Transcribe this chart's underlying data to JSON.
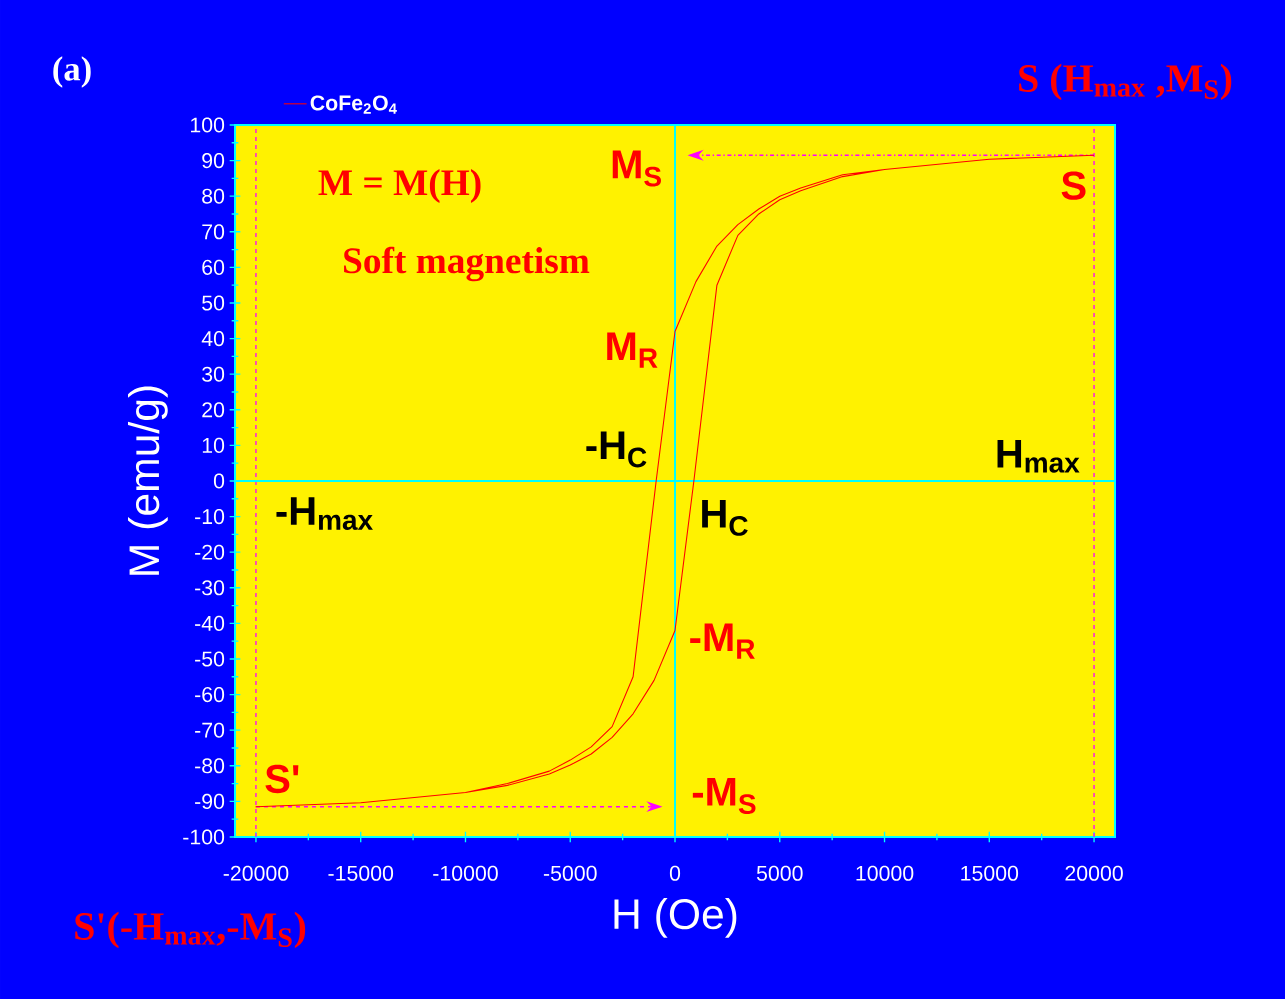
{
  "chart_data": {
    "type": "line",
    "xlabel": "H (Oe)",
    "ylabel": "M (emu/g)",
    "series": [
      {
        "name": "CoFe$_{2}$O$_{4}$",
        "color": "#ff0000",
        "x": [
          20000,
          15000,
          10000,
          8000,
          6000,
          5000,
          4000,
          3000,
          2000,
          1000,
          0,
          -900,
          -2000,
          -3000,
          -4000,
          -5000,
          -6000,
          -8000,
          -10000,
          -15000,
          -20000,
          -15000,
          -10000,
          -8000,
          -6000,
          -5000,
          -4000,
          -3000,
          -2000,
          -1000,
          0,
          900,
          2000,
          3000,
          4000,
          5000,
          6000,
          8000,
          10000,
          15000
        ],
        "values": [
          91.5,
          90.4,
          87.5,
          86,
          82.3,
          80,
          76.4,
          72,
          66,
          56,
          42,
          0,
          -55,
          -69,
          -74.7,
          -78.4,
          -81.5,
          -85,
          -87.5,
          -90.4,
          -91.5,
          -90.4,
          -87.5,
          -85.5,
          -82.3,
          -79.8,
          -76.7,
          -72,
          -65.4,
          -56,
          -42,
          0,
          55,
          69,
          75,
          79,
          81.5,
          85.5,
          87.5,
          90.4
        ]
      }
    ],
    "xlim": [
      -21000,
      21000
    ],
    "ylim": [
      -100,
      100
    ],
    "xticks": [
      -20000,
      -15000,
      -10000,
      -5000,
      0,
      5000,
      10000,
      15000,
      20000
    ],
    "yticks": [
      -100,
      -90,
      -80,
      -70,
      -60,
      -50,
      -40,
      -30,
      -20,
      -10,
      0,
      10,
      20,
      30,
      40,
      50,
      60,
      70,
      80,
      90,
      100
    ],
    "ref_lines": [
      {
        "axis": "x",
        "value": -20000,
        "color": "#ff00ff",
        "line_style": "dashed"
      },
      {
        "axis": "x",
        "value": 20000,
        "color": "#ff00ff",
        "line_style": "dashed"
      },
      {
        "axis": "x",
        "value": 0,
        "color": "#00ffff",
        "line_style": "solid"
      },
      {
        "axis": "y",
        "value": 0,
        "color": "#00ffff",
        "line_style": "solid"
      }
    ],
    "annotations": [
      {
        "text": "M$_{S}$",
        "x": 0,
        "y": 91.5
      },
      {
        "text": "M$_{R}$",
        "x": 0,
        "y": 42
      },
      {
        "text": "-H$_{C}$",
        "x": -900,
        "y": 0
      },
      {
        "text": "H$_{C}$",
        "x": 900,
        "y": 0
      },
      {
        "text": "-M$_{R}$",
        "x": 0,
        "y": -42
      },
      {
        "text": "-M$_{S}$",
        "x": 0,
        "y": -91.5
      },
      {
        "text": "S",
        "x": 20000,
        "y": 91.5
      },
      {
        "text": "S'",
        "x": -20000,
        "y": -91.5
      },
      {
        "text": "H$_{max}$",
        "x": 20000,
        "y": 0
      },
      {
        "text": "-H$_{max}$",
        "x": -20000,
        "y": 0
      },
      "(a)",
      "S (H$_{max}$ ,M$_{S}$)",
      "S'(-H$_{max}$,-M$_{S}$)",
      "M = M(H)",
      "Soft magnetism"
    ],
    "legend": "top left",
    "line_style": "solid",
    "marker": "none",
    "grid": false
  }
}
